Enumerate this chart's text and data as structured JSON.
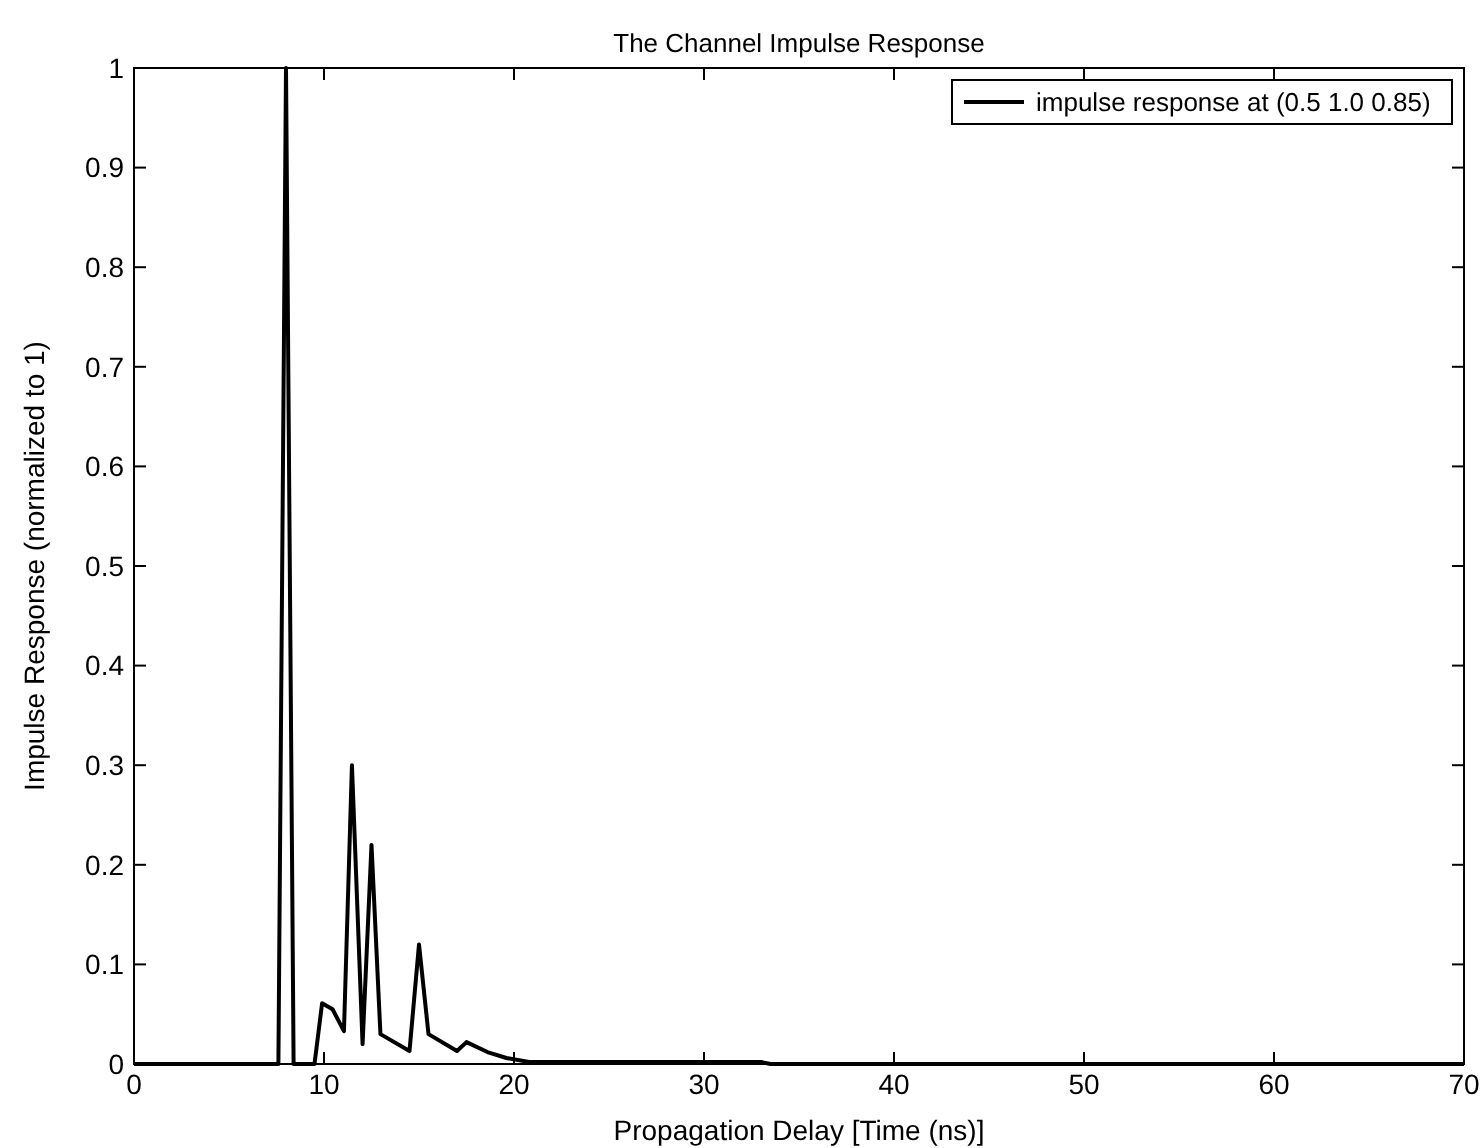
{
  "chart_data": {
    "type": "line",
    "title": "The Channel Impulse Response",
    "xlabel": "Propagation Delay [Time (ns)]",
    "ylabel": "Impulse Response (normalized to 1)",
    "xlim": [
      0,
      70
    ],
    "ylim": [
      0,
      1
    ],
    "xticks": [
      0,
      10,
      20,
      30,
      40,
      50,
      60,
      70
    ],
    "yticks": [
      0,
      0.1,
      0.2,
      0.3,
      0.4,
      0.5,
      0.6,
      0.7,
      0.8,
      0.9,
      1
    ],
    "grid": false,
    "legend": "top right",
    "marker": "none",
    "line_style": "solid",
    "series": [
      {
        "name": "impulse response at (0.5 1.0 0.85)",
        "color": "#000000",
        "x": [
          0,
          7.6,
          8.0,
          8.4,
          9.5,
          9.9,
          10.45,
          11.05,
          11.47,
          12.03,
          12.5,
          12.97,
          14.5,
          15.0,
          15.5,
          17.0,
          17.5,
          18.6,
          19.6,
          20.8,
          33,
          33.5,
          70
        ],
        "values": [
          0,
          0,
          1,
          0,
          0,
          0.061,
          0.055,
          0.033,
          0.3,
          0.02,
          0.22,
          0.03,
          0.013,
          0.12,
          0.03,
          0.013,
          0.022,
          0.012,
          0.006,
          0.002,
          0.002,
          0,
          0
        ]
      }
    ]
  }
}
